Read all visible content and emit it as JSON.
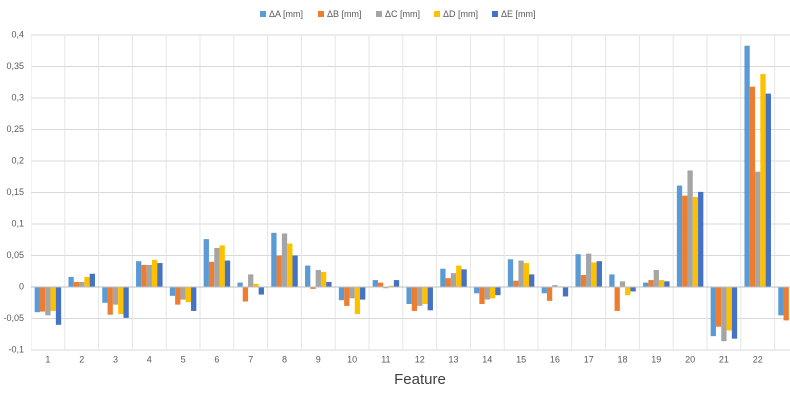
{
  "chart_data": {
    "type": "bar",
    "xlabel": "Feature",
    "categories": [
      "1",
      "2",
      "3",
      "4",
      "5",
      "6",
      "7",
      "8",
      "9",
      "10",
      "11",
      "12",
      "13",
      "14",
      "15",
      "16",
      "17",
      "18",
      "19",
      "20",
      "21",
      "22",
      null
    ],
    "series": [
      {
        "name": "ΔA [mm]",
        "color": "#5b9bd5",
        "values": [
          -0.04,
          0.016,
          -0.025,
          0.041,
          -0.014,
          0.076,
          0.007,
          0.086,
          0.034,
          -0.021,
          0.011,
          -0.027,
          0.029,
          -0.01,
          0.044,
          -0.01,
          0.052,
          0.02,
          0.007,
          0.161,
          -0.078,
          0.383,
          -0.045
        ]
      },
      {
        "name": "ΔB [mm]",
        "color": "#ed7d31",
        "values": [
          -0.039,
          0.008,
          -0.044,
          0.035,
          -0.028,
          0.04,
          -0.023,
          0.05,
          -0.003,
          -0.03,
          0.007,
          -0.038,
          0.014,
          -0.027,
          0.01,
          -0.022,
          0.019,
          -0.038,
          0.011,
          0.145,
          -0.063,
          0.318,
          -0.053
        ]
      },
      {
        "name": "ΔC [mm]",
        "color": "#a5a5a5",
        "values": [
          -0.045,
          0.008,
          -0.028,
          0.035,
          -0.02,
          0.062,
          0.02,
          0.085,
          0.027,
          -0.018,
          -0.002,
          -0.03,
          0.022,
          -0.02,
          0.042,
          0.003,
          0.053,
          0.009,
          0.027,
          0.185,
          -0.086,
          0.183,
          null
        ]
      },
      {
        "name": "ΔD [mm]",
        "color": "#ffc000",
        "values": [
          -0.038,
          0.016,
          -0.043,
          0.043,
          -0.024,
          0.066,
          0.005,
          0.069,
          0.024,
          -0.043,
          0.002,
          -0.027,
          0.034,
          -0.018,
          0.038,
          0.001,
          0.039,
          -0.013,
          0.011,
          0.143,
          -0.069,
          0.338,
          null
        ]
      },
      {
        "name": "ΔE [mm]",
        "color": "#4472c4",
        "values": [
          -0.06,
          0.021,
          -0.049,
          0.038,
          -0.038,
          0.042,
          -0.012,
          0.05,
          0.008,
          -0.02,
          0.011,
          -0.037,
          0.028,
          -0.013,
          0.02,
          -0.015,
          0.041,
          -0.007,
          0.009,
          0.151,
          -0.082,
          0.307,
          null
        ]
      }
    ],
    "ylim": [
      -0.1,
      0.4
    ],
    "yticks": [
      {
        "value": -0.1,
        "label": "-0,1"
      },
      {
        "value": -0.05,
        "label": "-0,05"
      },
      0,
      {
        "value": 0.05,
        "label": "0,05"
      },
      {
        "value": 0.1,
        "label": "0,1"
      },
      {
        "value": 0.15,
        "label": "0,15"
      },
      {
        "value": 0.2,
        "label": "0,2"
      },
      {
        "value": 0.25,
        "label": "0,25"
      },
      {
        "value": 0.3,
        "label": "0,3"
      },
      {
        "value": 0.35,
        "label": "0,35"
      },
      {
        "value": 0.4,
        "label": "0,4"
      }
    ],
    "grid": true,
    "legend": "top"
  }
}
